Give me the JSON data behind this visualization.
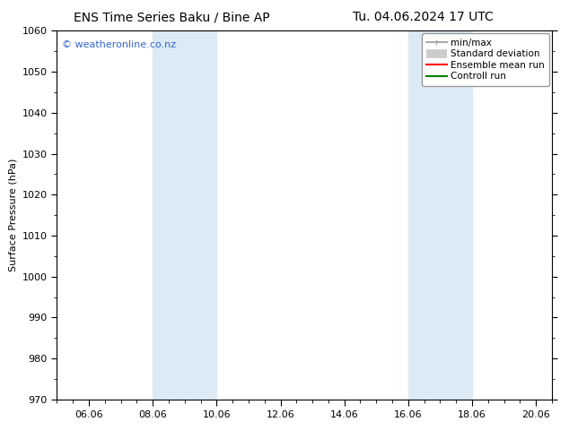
{
  "title_left": "ENS Time Series Baku / Bine AP",
  "title_right": "Tu. 04.06.2024 17 UTC",
  "ylabel": "Surface Pressure (hPa)",
  "ylim": [
    970,
    1060
  ],
  "yticks": [
    970,
    980,
    990,
    1000,
    1010,
    1020,
    1030,
    1040,
    1050,
    1060
  ],
  "xtick_labels": [
    "06.06",
    "08.06",
    "10.06",
    "12.06",
    "14.06",
    "16.06",
    "18.06",
    "20.06"
  ],
  "xtick_positions": [
    1.0,
    3.0,
    5.0,
    7.0,
    9.0,
    11.0,
    13.0,
    15.0
  ],
  "xlim": [
    0.0,
    15.5
  ],
  "shaded_bands": [
    {
      "x_start": 3.0,
      "x_end": 5.0
    },
    {
      "x_start": 11.0,
      "x_end": 13.0
    }
  ],
  "shaded_color": "#dceaf5",
  "background_color": "#ffffff",
  "watermark_text": "© weatheronline.co.nz",
  "watermark_color": "#3366cc",
  "legend_items": [
    {
      "label": "min/max",
      "color": "#aaaaaa",
      "lw": 1.5
    },
    {
      "label": "Standard deviation",
      "color": "#cccccc",
      "lw": 7
    },
    {
      "label": "Ensemble mean run",
      "color": "#ff0000",
      "lw": 1.5
    },
    {
      "label": "Controll run",
      "color": "#008000",
      "lw": 1.5
    }
  ],
  "title_fontsize": 10,
  "axis_fontsize": 8,
  "tick_fontsize": 8,
  "watermark_fontsize": 8,
  "legend_fontsize": 7.5
}
